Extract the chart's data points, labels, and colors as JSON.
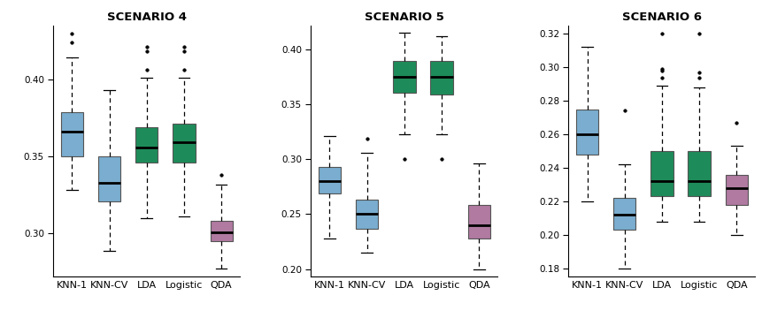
{
  "scenarios": [
    "SCENARIO 4",
    "SCENARIO 5",
    "SCENARIO 6"
  ],
  "scenario_keys": [
    "scenario4",
    "scenario5",
    "scenario6"
  ],
  "methods": [
    "KNN-1",
    "KNN-CV",
    "LDA",
    "Logistic",
    "QDA"
  ],
  "colors": {
    "KNN-1": "#7aadcf",
    "KNN-CV": "#7aadcf",
    "LDA": "#1e8c5a",
    "Logistic": "#1e8c5a",
    "QDA": "#b07aa1"
  },
  "scenario4": {
    "KNN-1": {
      "whislo": 0.328,
      "q1": 0.35,
      "med": 0.366,
      "q3": 0.379,
      "whishi": 0.414,
      "fliers": [
        0.424,
        0.43
      ]
    },
    "KNN-CV": {
      "whislo": 0.289,
      "q1": 0.321,
      "med": 0.333,
      "q3": 0.35,
      "whishi": 0.393,
      "fliers": []
    },
    "LDA": {
      "whislo": 0.31,
      "q1": 0.346,
      "med": 0.356,
      "q3": 0.369,
      "whishi": 0.401,
      "fliers": [
        0.406,
        0.418,
        0.421
      ]
    },
    "Logistic": {
      "whislo": 0.311,
      "q1": 0.346,
      "med": 0.359,
      "q3": 0.371,
      "whishi": 0.401,
      "fliers": [
        0.406,
        0.418,
        0.421
      ]
    },
    "QDA": {
      "whislo": 0.277,
      "q1": 0.295,
      "med": 0.301,
      "q3": 0.308,
      "whishi": 0.332,
      "fliers": [
        0.338
      ]
    }
  },
  "scenario5": {
    "KNN-1": {
      "whislo": 0.228,
      "q1": 0.269,
      "med": 0.28,
      "q3": 0.293,
      "whishi": 0.321,
      "fliers": []
    },
    "KNN-CV": {
      "whislo": 0.215,
      "q1": 0.237,
      "med": 0.25,
      "q3": 0.263,
      "whishi": 0.306,
      "fliers": [
        0.319
      ]
    },
    "LDA": {
      "whislo": 0.323,
      "q1": 0.361,
      "med": 0.375,
      "q3": 0.39,
      "whishi": 0.415,
      "fliers": [
        0.3
      ]
    },
    "Logistic": {
      "whislo": 0.323,
      "q1": 0.359,
      "med": 0.375,
      "q3": 0.39,
      "whishi": 0.412,
      "fliers": [
        0.3
      ]
    },
    "QDA": {
      "whislo": 0.2,
      "q1": 0.228,
      "med": 0.24,
      "q3": 0.258,
      "whishi": 0.296,
      "fliers": []
    }
  },
  "scenario6": {
    "KNN-1": {
      "whislo": 0.22,
      "q1": 0.248,
      "med": 0.26,
      "q3": 0.275,
      "whishi": 0.312,
      "fliers": []
    },
    "KNN-CV": {
      "whislo": 0.18,
      "q1": 0.203,
      "med": 0.212,
      "q3": 0.222,
      "whishi": 0.242,
      "fliers": [
        0.274
      ]
    },
    "LDA": {
      "whislo": 0.208,
      "q1": 0.223,
      "med": 0.232,
      "q3": 0.25,
      "whishi": 0.289,
      "fliers": [
        0.294,
        0.298,
        0.299,
        0.32
      ]
    },
    "Logistic": {
      "whislo": 0.208,
      "q1": 0.223,
      "med": 0.232,
      "q3": 0.25,
      "whishi": 0.288,
      "fliers": [
        0.294,
        0.297,
        0.32
      ]
    },
    "QDA": {
      "whislo": 0.2,
      "q1": 0.218,
      "med": 0.228,
      "q3": 0.236,
      "whishi": 0.253,
      "fliers": [
        0.267
      ]
    }
  },
  "ylims": {
    "SCENARIO 4": [
      0.272,
      0.435
    ],
    "SCENARIO 5": [
      0.193,
      0.422
    ],
    "SCENARIO 6": [
      0.175,
      0.325
    ]
  },
  "yticks": {
    "SCENARIO 4": [
      0.3,
      0.35,
      0.4
    ],
    "SCENARIO 5": [
      0.2,
      0.25,
      0.3,
      0.35,
      0.4
    ],
    "SCENARIO 6": [
      0.18,
      0.2,
      0.22,
      0.24,
      0.26,
      0.28,
      0.3,
      0.32
    ]
  }
}
